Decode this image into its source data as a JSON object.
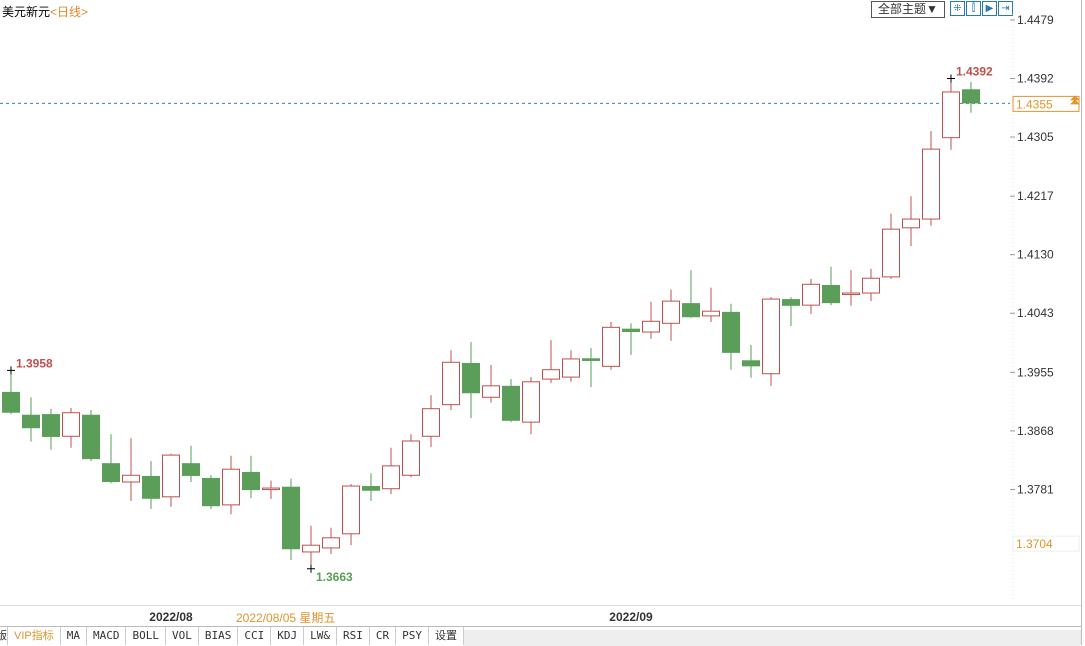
{
  "header": {
    "symbol": "美元新元",
    "period": "<日线>",
    "theme_select": "全部主题▼",
    "tools": [
      {
        "icon": "crosshair-icon",
        "glyph": "⁜"
      },
      {
        "icon": "zoom-range-icon",
        "glyph": "⫿"
      },
      {
        "icon": "play-forward-icon",
        "glyph": "▶"
      },
      {
        "icon": "jump-latest-icon",
        "glyph": "⇥"
      }
    ]
  },
  "hover": {
    "date": "2022/08/05 星期五",
    "price": "1.3704"
  },
  "current_price": "1.4355",
  "tabs": [
    "版",
    "VIP指标",
    "MA",
    "MACD",
    "BOLL",
    "VOL",
    "BIAS",
    "CCI",
    "KDJ",
    "LW&",
    "RSI",
    "CR",
    "PSY",
    "设置"
  ],
  "colors": {
    "up": "#c0504d",
    "down": "#5a9e5a",
    "price_line": "#2a8ab0",
    "hover": "#e0952e",
    "high_label": "#c0504d",
    "low_label": "#5a9e5a"
  },
  "chart_data": {
    "type": "candlestick",
    "ylim": [
      1.3625,
      1.4479
    ],
    "y_ticks": [
      "1.4479",
      "1.4392",
      "1.4305",
      "1.4217",
      "1.4130",
      "1.4043",
      "1.3955",
      "1.3868",
      "1.3781"
    ],
    "x_ticks": [
      {
        "label": "2022/08",
        "index": 8
      },
      {
        "label": "2022/09",
        "index": 31
      }
    ],
    "annotations": [
      {
        "text": "1.3958",
        "index": 0,
        "kind": "local-high"
      },
      {
        "text": "1.3663",
        "index": 15,
        "kind": "low"
      },
      {
        "text": "1.4392",
        "index": 47,
        "kind": "high"
      }
    ],
    "ohlc": [
      [
        1.3926,
        1.3958,
        1.3893,
        1.3895
      ],
      [
        1.3892,
        1.3918,
        1.3852,
        1.3872
      ],
      [
        1.3893,
        1.3901,
        1.384,
        1.3859
      ],
      [
        1.386,
        1.3902,
        1.3843,
        1.3895
      ],
      [
        1.3892,
        1.3899,
        1.3823,
        1.3826
      ],
      [
        1.382,
        1.3863,
        1.379,
        1.3792
      ],
      [
        1.3792,
        1.3857,
        1.3764,
        1.3802
      ],
      [
        1.3801,
        1.3823,
        1.3752,
        1.3767
      ],
      [
        1.377,
        1.3834,
        1.3755,
        1.3832
      ],
      [
        1.382,
        1.3846,
        1.3792,
        1.3801
      ],
      [
        1.3798,
        1.3802,
        1.3752,
        1.3756
      ],
      [
        1.3758,
        1.3831,
        1.3744,
        1.3811
      ],
      [
        1.3807,
        1.3831,
        1.3768,
        1.378
      ],
      [
        1.3781,
        1.3794,
        1.3767,
        1.3783
      ],
      [
        1.3785,
        1.3797,
        1.3676,
        1.3692
      ],
      [
        1.3688,
        1.3727,
        1.3663,
        1.3698
      ],
      [
        1.3694,
        1.3724,
        1.3685,
        1.3709
      ],
      [
        1.3715,
        1.3789,
        1.3698,
        1.3786
      ],
      [
        1.3786,
        1.3805,
        1.3764,
        1.3779
      ],
      [
        1.3782,
        1.3843,
        1.3774,
        1.3816
      ],
      [
        1.3802,
        1.3863,
        1.3799,
        1.3853
      ],
      [
        1.386,
        1.3921,
        1.3844,
        1.3901
      ],
      [
        1.3907,
        1.3988,
        1.3899,
        1.397
      ],
      [
        1.3969,
        1.4,
        1.3887,
        1.3924
      ],
      [
        1.3918,
        1.3966,
        1.391,
        1.3935
      ],
      [
        1.3935,
        1.3945,
        1.3881,
        1.3883
      ],
      [
        1.3881,
        1.3948,
        1.3863,
        1.3941
      ],
      [
        1.3945,
        1.4003,
        1.3939,
        1.3959
      ],
      [
        1.3948,
        1.3988,
        1.3941,
        1.3975
      ],
      [
        1.3976,
        1.3991,
        1.3933,
        1.3972
      ],
      [
        1.3964,
        1.403,
        1.3959,
        1.4022
      ],
      [
        1.402,
        1.4028,
        1.3981,
        1.4015
      ],
      [
        1.4015,
        1.406,
        1.4005,
        1.4031
      ],
      [
        1.4028,
        1.4078,
        1.4002,
        1.4061
      ],
      [
        1.4058,
        1.4107,
        1.4036,
        1.4037
      ],
      [
        1.4039,
        1.4081,
        1.403,
        1.4046
      ],
      [
        1.4045,
        1.4057,
        1.3959,
        1.3984
      ],
      [
        1.3973,
        1.3996,
        1.3947,
        1.3964
      ],
      [
        1.3953,
        1.4067,
        1.3935,
        1.4064
      ],
      [
        1.4064,
        1.4067,
        1.4024,
        1.4054
      ],
      [
        1.4055,
        1.4094,
        1.4042,
        1.4086
      ],
      [
        1.4085,
        1.4112,
        1.4055,
        1.4058
      ],
      [
        1.4072,
        1.4107,
        1.4054,
        1.4073
      ],
      [
        1.4073,
        1.4109,
        1.4061,
        1.4095
      ],
      [
        1.4097,
        1.4191,
        1.4094,
        1.4168
      ],
      [
        1.417,
        1.4217,
        1.4143,
        1.4183
      ],
      [
        1.4183,
        1.4314,
        1.4173,
        1.4287
      ],
      [
        1.4304,
        1.4392,
        1.4286,
        1.4372
      ],
      [
        1.4376,
        1.4387,
        1.4341,
        1.4355
      ]
    ]
  }
}
